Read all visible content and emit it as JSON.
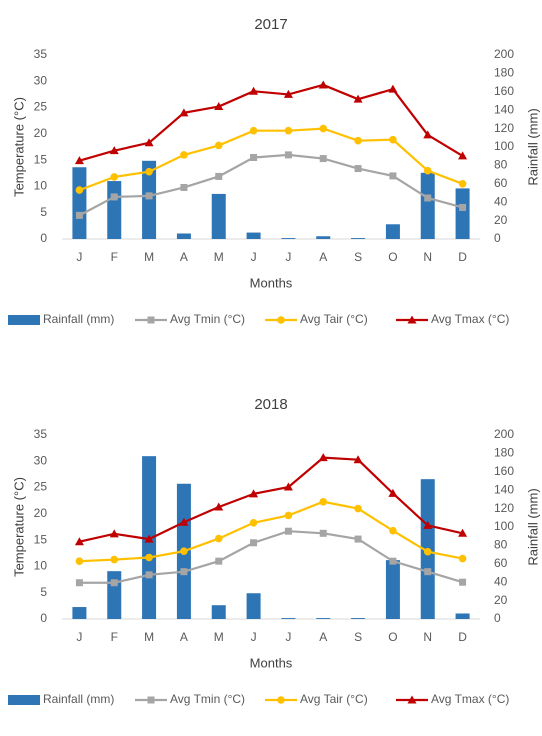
{
  "chart_data": [
    {
      "type": "combo",
      "title": "2017",
      "x_label": "Months",
      "y_label": "Temperature (°C)",
      "y2_label": "Rainfall (mm)",
      "categories": [
        "J",
        "F",
        "M",
        "A",
        "M",
        "J",
        "J",
        "A",
        "S",
        "O",
        "N",
        "D"
      ],
      "ylim": [
        0,
        35
      ],
      "yticks": [
        0,
        5,
        10,
        15,
        20,
        25,
        30,
        35
      ],
      "y2lim": [
        0,
        200
      ],
      "y2ticks": [
        0,
        20,
        40,
        60,
        80,
        100,
        120,
        140,
        160,
        180,
        200
      ],
      "legend": "bottom",
      "series": [
        {
          "name": "Rainfall (mm)",
          "type": "bar",
          "axis": "y2",
          "color": "#2e75b6",
          "values": [
            78,
            63,
            85,
            6,
            49,
            7,
            1,
            3,
            1,
            16,
            72,
            55
          ]
        },
        {
          "name": "Avg Tmin (°C)",
          "type": "line",
          "marker": "square",
          "color": "#a5a5a5",
          "values": [
            4.5,
            8,
            8.2,
            9.8,
            11.9,
            15.5,
            16,
            15.3,
            13.4,
            12,
            7.8,
            6
          ]
        },
        {
          "name": "Avg Tair (°C)",
          "type": "line",
          "marker": "circle",
          "color": "#ffc000",
          "values": [
            9.3,
            11.8,
            12.8,
            16,
            17.8,
            20.6,
            20.6,
            21,
            18.7,
            18.9,
            13,
            10.5
          ]
        },
        {
          "name": "Avg Tmax (°C)",
          "type": "line",
          "marker": "triangle",
          "color": "#c00000",
          "values": [
            14.9,
            16.8,
            18.3,
            24,
            25.2,
            28.1,
            27.5,
            29.3,
            26.6,
            28.5,
            19.8,
            15.8
          ]
        }
      ]
    },
    {
      "type": "combo",
      "title": "2018",
      "x_label": "Months",
      "y_label": "Temperature (°C)",
      "y2_label": "Rainfall (mm)",
      "categories": [
        "J",
        "F",
        "M",
        "A",
        "M",
        "J",
        "J",
        "A",
        "S",
        "O",
        "N",
        "D"
      ],
      "ylim": [
        0,
        35
      ],
      "yticks": [
        0,
        5,
        10,
        15,
        20,
        25,
        30,
        35
      ],
      "y2lim": [
        0,
        200
      ],
      "y2ticks": [
        0,
        20,
        40,
        60,
        80,
        100,
        120,
        140,
        160,
        180,
        200
      ],
      "legend": "bottom",
      "series": [
        {
          "name": "Rainfall (mm)",
          "type": "bar",
          "axis": "y2",
          "color": "#2e75b6",
          "values": [
            13,
            52,
            177,
            147,
            15,
            28,
            1,
            1,
            1,
            64,
            152,
            6
          ]
        },
        {
          "name": "Avg Tmin (°C)",
          "type": "line",
          "marker": "square",
          "color": "#a5a5a5",
          "values": [
            6.9,
            6.9,
            8.4,
            9,
            11,
            14.5,
            16.7,
            16.3,
            15.2,
            11,
            9,
            7
          ]
        },
        {
          "name": "Avg Tair (°C)",
          "type": "line",
          "marker": "circle",
          "color": "#ffc000",
          "values": [
            11,
            11.3,
            11.7,
            12.9,
            15.3,
            18.3,
            19.7,
            22.3,
            21,
            16.8,
            12.8,
            11.5
          ]
        },
        {
          "name": "Avg Tmax (°C)",
          "type": "line",
          "marker": "triangle",
          "color": "#c00000",
          "values": [
            14.7,
            16.2,
            15.2,
            18.4,
            21.3,
            23.8,
            25.1,
            30.7,
            30.3,
            23.9,
            17.8,
            16.3
          ]
        }
      ]
    }
  ]
}
